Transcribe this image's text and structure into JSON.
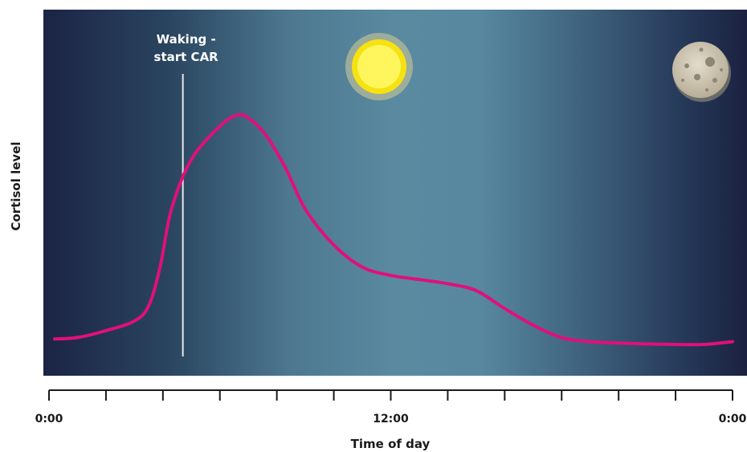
{
  "chart_data": {
    "type": "line",
    "title": "",
    "xlabel": "Time of day",
    "ylabel": "Cortisol level",
    "x_ticks": [
      {
        "hour": 0,
        "label": "0:00"
      },
      {
        "hour": 12,
        "label": "12:00"
      },
      {
        "hour": 24,
        "label": "0:00"
      }
    ],
    "xlim": [
      0,
      24
    ],
    "ylim": [
      0,
      10
    ],
    "grid": false,
    "series": [
      {
        "name": "",
        "color": "#e0107a",
        "x": [
          0.2,
          1.0,
          2.0,
          3.0,
          3.5,
          3.9,
          4.3,
          5.0,
          6.0,
          6.6,
          7.0,
          7.6,
          8.3,
          9.0,
          10.0,
          11.0,
          12.0,
          13.0,
          14.0,
          15.0,
          16.0,
          17.0,
          18.0,
          19.0,
          20.0,
          21.0,
          22.0,
          23.0,
          24.0
        ],
        "y": [
          1.1,
          1.15,
          1.4,
          1.75,
          2.3,
          3.7,
          5.8,
          7.6,
          8.8,
          9.2,
          9.1,
          8.5,
          7.3,
          5.8,
          4.5,
          3.7,
          3.4,
          3.25,
          3.1,
          2.85,
          2.2,
          1.6,
          1.15,
          1.0,
          0.95,
          0.92,
          0.9,
          0.9,
          1.0
        ]
      }
    ],
    "annotations": [
      {
        "text": [
          "Waking -",
          "start CAR"
        ],
        "hour": 4.7
      }
    ],
    "icons": [
      "sun-icon",
      "moon-icon"
    ],
    "colors": {
      "background_night": "#1b2444",
      "background_day": "#5a8aa0",
      "curve": "#e0107a",
      "sun": "#fff35a",
      "moon": "#d4ccb8"
    }
  }
}
